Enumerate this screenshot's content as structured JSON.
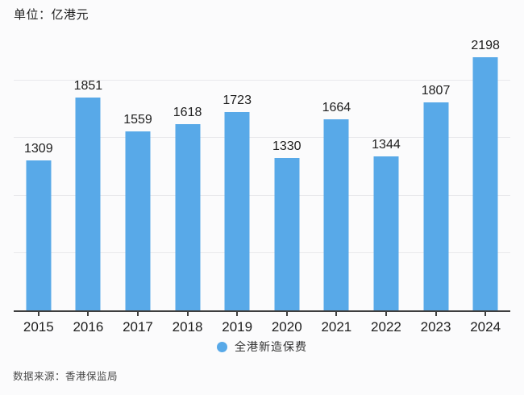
{
  "unit_label": "单位：亿港元",
  "source_note": "数据来源：香港保监局",
  "legend": {
    "label": "全港新造保费",
    "marker": "circle-icon"
  },
  "colors": {
    "bar": "#58a9e8",
    "gridline": "#e9e9ec",
    "axis": "#3f3f3f",
    "background": "#fbfbfc",
    "label_text": "#1d1d1d",
    "muted_text": "#4a4a4a"
  },
  "chart_data": {
    "type": "bar",
    "title": "单位：亿港元",
    "categories": [
      "2015",
      "2016",
      "2017",
      "2018",
      "2019",
      "2020",
      "2021",
      "2022",
      "2023",
      "2024"
    ],
    "series": [
      {
        "name": "全港新造保费",
        "values": [
          1309,
          1851,
          1559,
          1618,
          1723,
          1330,
          1664,
          1344,
          1807,
          2198
        ]
      }
    ],
    "xlabel": "",
    "ylabel": "",
    "ylim": [
      0,
      2500
    ],
    "gridline_values": [
      500,
      1000,
      1500,
      2000
    ],
    "grid": "horizontal",
    "legend_position": "bottom",
    "data_labels": true,
    "source": "数据来源：香港保监局"
  }
}
